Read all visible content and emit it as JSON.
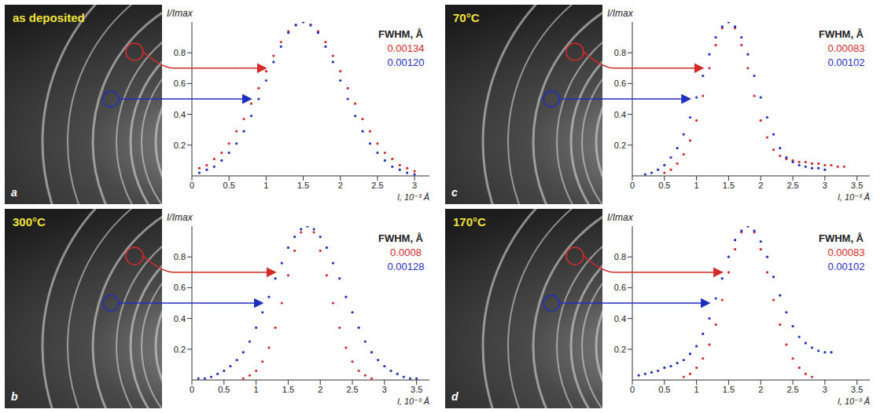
{
  "chart_data": [
    {
      "type": "scatter",
      "panel": "a",
      "title": "as deposited",
      "x_label": "l, 10⁻³ Å",
      "y_label": "I/Imax",
      "annotation": "FWHM, Å",
      "xlim": [
        0,
        3.2
      ],
      "xticks": [
        0,
        0.5,
        1,
        1.5,
        2,
        2.5,
        3
      ],
      "ylim": [
        0,
        1
      ],
      "yticks": [
        0.2,
        0.4,
        0.6,
        0.8
      ],
      "series": [
        {
          "color": "#d42a2a",
          "fwhm": "0.00134",
          "x": [
            0.1,
            0.2,
            0.3,
            0.4,
            0.5,
            0.6,
            0.7,
            0.8,
            0.9,
            1.0,
            1.1,
            1.2,
            1.3,
            1.4,
            1.5,
            1.6,
            1.7,
            1.8,
            1.9,
            2.0,
            2.1,
            2.2,
            2.3,
            2.4,
            2.5,
            2.6,
            2.7,
            2.8,
            2.9,
            3.0
          ],
          "values": [
            0.05,
            0.07,
            0.11,
            0.15,
            0.21,
            0.29,
            0.37,
            0.47,
            0.57,
            0.68,
            0.78,
            0.87,
            0.94,
            0.98,
            1.0,
            0.98,
            0.94,
            0.87,
            0.78,
            0.68,
            0.57,
            0.47,
            0.37,
            0.29,
            0.21,
            0.15,
            0.11,
            0.07,
            0.05,
            0.03
          ]
        },
        {
          "color": "#1f2fbf",
          "fwhm": "0.00120",
          "x": [
            0.1,
            0.2,
            0.3,
            0.4,
            0.5,
            0.6,
            0.7,
            0.8,
            0.9,
            1.0,
            1.1,
            1.2,
            1.3,
            1.4,
            1.5,
            1.6,
            1.7,
            1.8,
            1.9,
            2.0,
            2.1,
            2.2,
            2.3,
            2.4,
            2.5,
            2.6,
            2.7,
            2.8,
            2.9,
            3.0
          ],
          "values": [
            0.02,
            0.04,
            0.06,
            0.1,
            0.15,
            0.21,
            0.29,
            0.39,
            0.5,
            0.62,
            0.74,
            0.84,
            0.93,
            0.98,
            1.0,
            0.98,
            0.93,
            0.84,
            0.74,
            0.62,
            0.5,
            0.39,
            0.29,
            0.21,
            0.15,
            0.1,
            0.06,
            0.04,
            0.02,
            0.01
          ]
        }
      ]
    },
    {
      "type": "scatter",
      "panel": "b",
      "title": "300°C",
      "x_label": "l, 10⁻³ Å",
      "y_label": "I/Imax",
      "annotation": "FWHM, Å",
      "xlim": [
        0,
        3.7
      ],
      "xticks": [
        0,
        0.5,
        1,
        1.5,
        2,
        2.5,
        3,
        3.5
      ],
      "ylim": [
        0,
        1
      ],
      "yticks": [
        0.2,
        0.4,
        0.6,
        0.8
      ],
      "series": [
        {
          "color": "#d42a2a",
          "fwhm": "0.0008",
          "x": [
            0.8,
            0.9,
            1.0,
            1.1,
            1.2,
            1.3,
            1.4,
            1.5,
            1.6,
            1.7,
            1.8,
            1.9,
            2.0,
            2.1,
            2.2,
            2.3,
            2.4,
            2.5,
            2.6,
            2.7,
            2.8
          ],
          "values": [
            0.01,
            0.03,
            0.06,
            0.12,
            0.21,
            0.34,
            0.5,
            0.68,
            0.84,
            0.96,
            1.0,
            0.96,
            0.84,
            0.68,
            0.5,
            0.34,
            0.21,
            0.12,
            0.06,
            0.03,
            0.01
          ]
        },
        {
          "color": "#1f2fbf",
          "fwhm": "0.00128",
          "x": [
            0.1,
            0.2,
            0.3,
            0.4,
            0.5,
            0.6,
            0.7,
            0.8,
            0.9,
            1.0,
            1.1,
            1.2,
            1.3,
            1.4,
            1.5,
            1.6,
            1.7,
            1.8,
            1.9,
            2.0,
            2.1,
            2.2,
            2.3,
            2.4,
            2.5,
            2.6,
            2.7,
            2.8,
            2.9,
            3.0,
            3.1,
            3.2,
            3.3,
            3.4,
            3.5
          ],
          "values": [
            0.01,
            0.01,
            0.02,
            0.04,
            0.06,
            0.09,
            0.13,
            0.18,
            0.25,
            0.34,
            0.44,
            0.54,
            0.66,
            0.76,
            0.86,
            0.93,
            0.98,
            1.0,
            0.98,
            0.93,
            0.86,
            0.76,
            0.66,
            0.54,
            0.44,
            0.34,
            0.25,
            0.18,
            0.13,
            0.09,
            0.06,
            0.04,
            0.02,
            0.01,
            0.01
          ]
        }
      ]
    },
    {
      "type": "scatter",
      "panel": "c",
      "title": "70°C",
      "x_label": "l, 10⁻³ Å",
      "y_label": "I/Imax",
      "annotation": "FWHM, Å",
      "xlim": [
        0,
        3.7
      ],
      "xticks": [
        0,
        0.5,
        1,
        1.5,
        2,
        2.5,
        3,
        3.5
      ],
      "ylim": [
        0,
        1
      ],
      "yticks": [
        0.2,
        0.4,
        0.6,
        0.8
      ],
      "series": [
        {
          "color": "#d42a2a",
          "fwhm": "0.00083",
          "x": [
            0.5,
            0.6,
            0.7,
            0.8,
            0.9,
            1.0,
            1.1,
            1.2,
            1.3,
            1.4,
            1.5,
            1.6,
            1.7,
            1.8,
            1.9,
            2.0,
            2.1,
            2.2,
            2.3,
            2.4,
            2.5,
            2.6,
            2.7,
            2.8,
            2.9,
            3.0,
            3.1,
            3.2,
            3.3
          ],
          "values": [
            0.02,
            0.04,
            0.08,
            0.14,
            0.23,
            0.36,
            0.52,
            0.7,
            0.85,
            0.96,
            1.0,
            0.96,
            0.85,
            0.7,
            0.52,
            0.36,
            0.25,
            0.17,
            0.13,
            0.11,
            0.1,
            0.09,
            0.09,
            0.08,
            0.08,
            0.07,
            0.07,
            0.06,
            0.06
          ]
        },
        {
          "color": "#1f2fbf",
          "fwhm": "0.00102",
          "x": [
            0.2,
            0.3,
            0.4,
            0.5,
            0.6,
            0.7,
            0.8,
            0.9,
            1.0,
            1.1,
            1.2,
            1.3,
            1.4,
            1.5,
            1.6,
            1.7,
            1.8,
            1.9,
            2.0,
            2.1,
            2.2,
            2.3,
            2.4,
            2.5,
            2.6,
            2.7,
            2.8,
            2.9,
            3.0
          ],
          "values": [
            0.01,
            0.02,
            0.04,
            0.07,
            0.12,
            0.18,
            0.27,
            0.38,
            0.51,
            0.65,
            0.79,
            0.9,
            0.97,
            1.0,
            0.97,
            0.9,
            0.79,
            0.65,
            0.51,
            0.38,
            0.27,
            0.18,
            0.12,
            0.09,
            0.07,
            0.06,
            0.05,
            0.05,
            0.04
          ]
        }
      ]
    },
    {
      "type": "scatter",
      "panel": "d",
      "title": "170°C",
      "x_label": "l, 10⁻³ Å",
      "y_label": "I/Imax",
      "annotation": "FWHM, Å",
      "xlim": [
        0,
        3.7
      ],
      "xticks": [
        0,
        0.5,
        1,
        1.5,
        2,
        2.5,
        3,
        3.5
      ],
      "ylim": [
        0,
        1
      ],
      "yticks": [
        0.2,
        0.4,
        0.6,
        0.8
      ],
      "series": [
        {
          "color": "#d42a2a",
          "fwhm": "0.00083",
          "x": [
            0.8,
            0.9,
            1.0,
            1.1,
            1.2,
            1.3,
            1.4,
            1.5,
            1.6,
            1.7,
            1.8,
            1.9,
            2.0,
            2.1,
            2.2,
            2.3,
            2.4,
            2.5,
            2.6,
            2.7,
            2.8
          ],
          "values": [
            0.02,
            0.04,
            0.08,
            0.14,
            0.23,
            0.36,
            0.52,
            0.7,
            0.85,
            0.96,
            1.0,
            0.96,
            0.85,
            0.7,
            0.52,
            0.36,
            0.23,
            0.14,
            0.08,
            0.04,
            0.02
          ]
        },
        {
          "color": "#1f2fbf",
          "fwhm": "0.00102",
          "x": [
            0.1,
            0.2,
            0.3,
            0.4,
            0.5,
            0.6,
            0.7,
            0.8,
            0.9,
            1.0,
            1.1,
            1.2,
            1.3,
            1.4,
            1.5,
            1.6,
            1.7,
            1.8,
            1.9,
            2.0,
            2.1,
            2.2,
            2.3,
            2.4,
            2.5,
            2.6,
            2.7,
            2.8,
            2.9,
            3.0,
            3.1
          ],
          "values": [
            0.03,
            0.04,
            0.05,
            0.06,
            0.08,
            0.09,
            0.11,
            0.13,
            0.17,
            0.22,
            0.3,
            0.4,
            0.53,
            0.66,
            0.8,
            0.91,
            0.97,
            1.0,
            0.97,
            0.9,
            0.8,
            0.67,
            0.55,
            0.44,
            0.35,
            0.28,
            0.24,
            0.21,
            0.19,
            0.18,
            0.18
          ]
        }
      ]
    }
  ]
}
